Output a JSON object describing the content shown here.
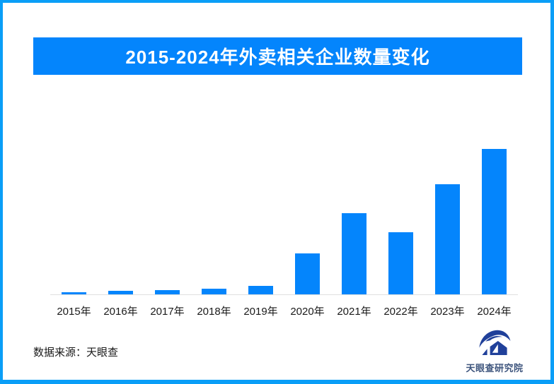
{
  "frame": {
    "border_color": "#0a9ef7",
    "background": "#ffffff"
  },
  "header": {
    "title": "2015-2024年外卖相关企业数量变化",
    "background": "#0485fc",
    "text_color": "#ffffff"
  },
  "chart_data": {
    "type": "bar",
    "title": "2015-2024年外卖相关企业数量变化",
    "categories": [
      "2015年",
      "2016年",
      "2017年",
      "2018年",
      "2019年",
      "2020年",
      "2021年",
      "2022年",
      "2023年",
      "2024年"
    ],
    "values": [
      1.6,
      2.3,
      2.8,
      3.9,
      5.8,
      28.2,
      55.8,
      42.7,
      75.7,
      100
    ],
    "value_scale": "relative bar height, tallest bar (2024) = 100; no numeric y-axis shown in source",
    "bar_color": "#0485fc",
    "xlabel": "",
    "ylabel": "",
    "ylim": [
      0,
      100
    ],
    "grid": false,
    "legend": false,
    "axis_line_color": "#e0e0e0",
    "tick_label_color": "#1a1a1a"
  },
  "footer": {
    "source_label": "数据来源：天眼查"
  },
  "logo": {
    "name": "天眼查研究院",
    "text_color": "#3f567e",
    "icon_color": "#20409a",
    "icon": "tianyancha-eye-house-logo"
  }
}
